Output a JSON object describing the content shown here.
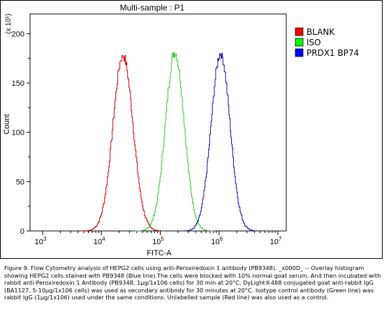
{
  "chart_data": {
    "type": "line",
    "title": "Multi-sample : P1",
    "xlabel": "FITC-A",
    "ylabel": "Count",
    "y_multiplier_label": "(x 10¹)",
    "x_scale": "log",
    "xlim": [
      1000,
      10000000
    ],
    "ylim": [
      0,
      220
    ],
    "x_ticks": [
      {
        "base": "10",
        "exp": "3",
        "value": 1000
      },
      {
        "base": "10",
        "exp": "4",
        "value": 10000
      },
      {
        "base": "10",
        "exp": "5",
        "value": 100000
      },
      {
        "base": "10",
        "exp": "6",
        "value": 1000000
      },
      {
        "base": "10",
        "exp": "7",
        "value": 10000000
      }
    ],
    "y_ticks": [
      0,
      50,
      100,
      150,
      200
    ],
    "legend_position": "right",
    "series": [
      {
        "name": "BLANK",
        "color": "#cc0000",
        "legend_color": "#ff0000",
        "peak_x": 23000,
        "peak_y": 178,
        "spread_decades": 0.17
      },
      {
        "name": "ISO",
        "color": "#33cc33",
        "legend_color": "#00ff00",
        "peak_x": 175000,
        "peak_y": 181,
        "spread_decades": 0.16
      },
      {
        "name": "PRDX1 BP74",
        "color": "#1111aa",
        "legend_color": "#0000ff",
        "peak_x": 1050000,
        "peak_y": 180,
        "spread_decades": 0.16
      }
    ]
  },
  "caption": "Figure 9. Flow Cytometry analysis of HEPG2 cells using anti-Peroxiredoxin 1 antibody (PB9348). _x000D_ -- Overlay histogram showing HEPG2 cells stained with PB9348 (Blue line).The cells were blocked with 10% normal goat serum. And then incubated with rabbit anti-Peroxiredoxin 1 Antibody (PB9348, 1μg/1x106 cells) for 30 min at 20°C. DyLight®488 conjugated goat anti-rabbit IgG (BA1127, 5-10μg/1x106 cells) was used as secondary antibody for 30 minutes at 20°C. Isotype control antibody (Green line) was rabbit IgG (1μg/1x106) used under the same conditions. Unlabelled sample (Red line) was also used as a control."
}
